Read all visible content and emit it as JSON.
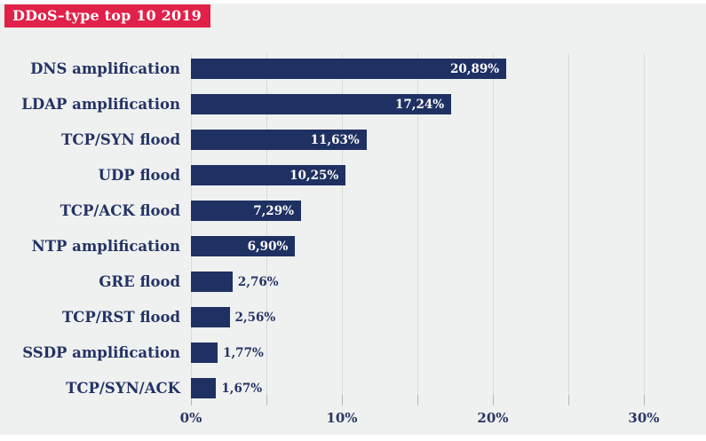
{
  "title": {
    "text": "DDoS–type top 10 2019"
  },
  "colors": {
    "background": "#eff1f0",
    "bar": "#1f3062",
    "title_badge_bg": "#e02149",
    "title_text": "#ffffff",
    "category_text": "#243365",
    "value_inside_text": "#ffffff",
    "value_outside_text": "#243365",
    "gridline": "#d9dbda",
    "tick": "#b4b8ba",
    "axis_text": "#2b3764"
  },
  "chart_data": {
    "type": "bar",
    "orientation": "horizontal",
    "title": "DDoS–type top 10 2019",
    "categories": [
      "DNS amplification",
      "LDAP amplification",
      "TCP/SYN flood",
      "UDP flood",
      "TCP/ACK flood",
      "NTP amplification",
      "GRE flood",
      "TCP/RST flood",
      "SSDP amplification",
      "TCP/SYN/ACK"
    ],
    "values": [
      20.89,
      17.24,
      11.63,
      10.25,
      7.29,
      6.9,
      2.76,
      2.56,
      1.77,
      1.67
    ],
    "value_labels": [
      "20,89%",
      "17,24%",
      "11,63%",
      "10,25%",
      "7,29%",
      "6,90%",
      "2,76%",
      "2,56%",
      "1,77%",
      "1,67%"
    ],
    "xlabel": "",
    "ylabel": "",
    "xlim": [
      0,
      30
    ],
    "x_ticks": [
      0,
      5,
      10,
      15,
      20,
      25,
      30
    ],
    "x_major_ticks": [
      {
        "value": 0,
        "label": "0%"
      },
      {
        "value": 10,
        "label": "10%"
      },
      {
        "value": 20,
        "label": "20%"
      },
      {
        "value": 30,
        "label": "30%"
      }
    ],
    "grid": true,
    "legend": false
  }
}
